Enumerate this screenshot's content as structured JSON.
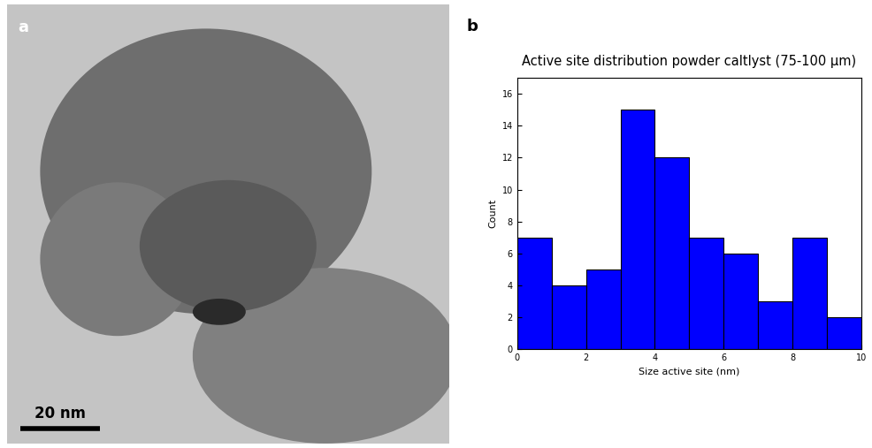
{
  "image_panel": {
    "label": "a",
    "scale_bar": "20 nm"
  },
  "chart_panel_label": "b",
  "chart_data": {
    "type": "histogram",
    "title": "Active site distribution powder caltlyst (75-100 µm)",
    "x_label": "Size active site (nm)",
    "y_label": "Count",
    "bins": [
      0,
      1,
      2,
      3,
      4,
      5,
      6,
      7,
      8,
      9,
      10
    ],
    "counts": [
      7,
      4,
      5,
      15,
      12,
      7,
      6,
      3,
      7,
      2
    ],
    "color": "#0000ff",
    "xlim": [
      0,
      10
    ],
    "xticks": [
      0,
      2,
      4,
      6,
      8,
      10
    ],
    "ylim": [
      0,
      17
    ],
    "yticks": [
      0,
      2,
      4,
      6,
      8,
      10,
      12,
      14,
      16
    ],
    "grid": false
  }
}
